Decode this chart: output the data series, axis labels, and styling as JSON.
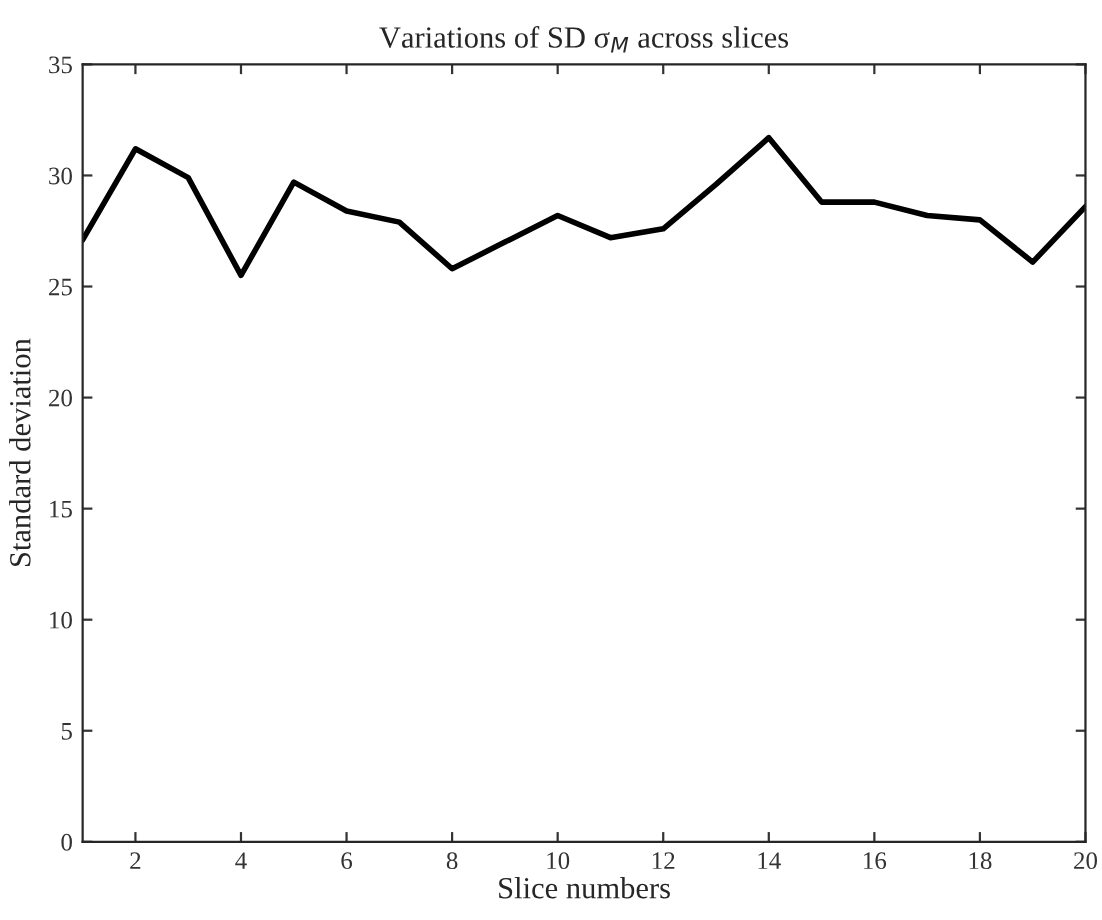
{
  "chart_data": {
    "type": "line",
    "title": "Variations of SD σ$_{M}$ across slices",
    "xlabel": "Slice numbers",
    "ylabel": "Standard deviation",
    "x": [
      1,
      2,
      3,
      4,
      5,
      6,
      7,
      8,
      9,
      10,
      11,
      12,
      13,
      14,
      15,
      16,
      17,
      18,
      19,
      20
    ],
    "series": [
      {
        "color": "#000000",
        "values": [
          27.1,
          31.2,
          29.9,
          25.5,
          29.7,
          28.4,
          27.9,
          25.8,
          27.0,
          28.2,
          27.2,
          27.6,
          29.6,
          31.7,
          28.8,
          28.8,
          28.2,
          28.0,
          26.1,
          28.6
        ]
      }
    ],
    "xlim": [
      1,
      20
    ],
    "xticks": [
      2,
      4,
      6,
      8,
      10,
      12,
      14,
      16,
      18,
      20
    ],
    "ylim": [
      0,
      35
    ],
    "yticks": [
      0,
      5,
      10,
      15,
      20,
      25,
      30,
      35
    ],
    "grid": false,
    "legend": false,
    "marker": "none",
    "line_style": "solid"
  }
}
